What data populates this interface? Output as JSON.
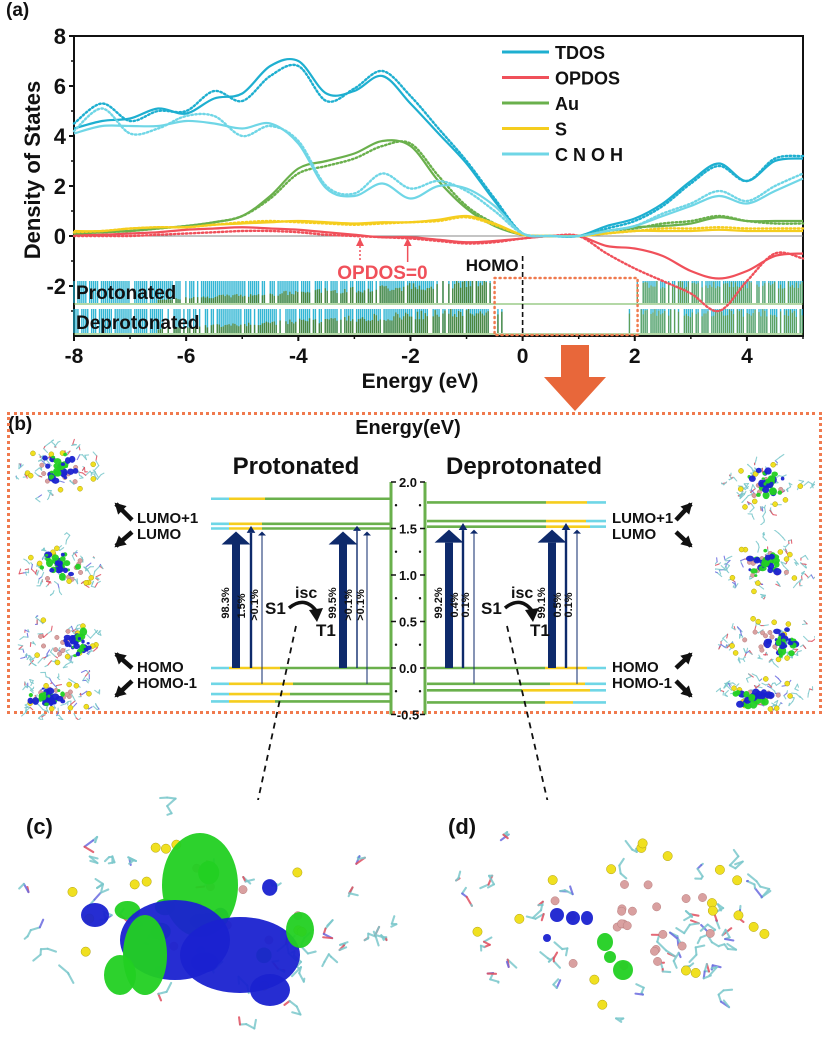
{
  "panel_labels": {
    "a": "(a)",
    "b": "(b)",
    "c": "(c)",
    "d": "(d)"
  },
  "colors": {
    "tdos": "#1eafd0",
    "opdos": "#f0505a",
    "au": "#6ab04c",
    "s": "#f5cd1e",
    "cnoh": "#6fd6e6",
    "arrow_orange": "#e8673a",
    "box_dotted": "#f07a4e",
    "transition_navy": "#0e2a6b",
    "opdos_label": "#f0505a"
  },
  "chart_data": [
    {
      "type": "line",
      "title": "",
      "xlabel": "Energy (eV)",
      "ylabel": "Density of States",
      "xlim": [
        -8,
        5
      ],
      "ylim": [
        -4,
        8
      ],
      "xticks": [
        "-8",
        "-6",
        "-4",
        "-2",
        "0",
        "2",
        "4"
      ],
      "yticks": [
        "-2",
        "0",
        "2",
        "4",
        "6",
        "8"
      ],
      "grid": false,
      "legend": {
        "placement": "top-right",
        "entries": [
          "TDOS",
          "OPDOS",
          "Au",
          "S",
          "C N O H"
        ]
      },
      "line_styles": {
        "solid": "Protonated",
        "dotted": "Deprotonated"
      },
      "x": [
        -8,
        -7.5,
        -7,
        -6.5,
        -6,
        -5.5,
        -5,
        -4.5,
        -4,
        -3.5,
        -3,
        -2.5,
        -2,
        -1.5,
        -1,
        -0.5,
        0,
        0.5,
        1,
        1.5,
        2,
        2.5,
        3,
        3.5,
        4,
        4.5,
        5
      ],
      "series": [
        {
          "name": "TDOS",
          "style": "solid",
          "values": [
            4.3,
            4.6,
            4.7,
            5.1,
            4.9,
            5.5,
            5.7,
            6.8,
            7.0,
            5.7,
            5.8,
            6.4,
            5.3,
            4.1,
            2.9,
            1.4,
            0.1,
            0.0,
            0.0,
            0.4,
            0.7,
            1.3,
            2.2,
            2.9,
            2.2,
            3.0,
            3.1
          ]
        },
        {
          "name": "TDOS",
          "style": "dotted",
          "values": [
            4.5,
            5.3,
            4.6,
            5.0,
            5.0,
            5.8,
            5.4,
            6.4,
            6.8,
            5.4,
            5.9,
            6.6,
            5.6,
            4.3,
            3.0,
            1.5,
            0.1,
            0.0,
            0.0,
            0.3,
            0.6,
            1.2,
            2.1,
            2.8,
            2.2,
            3.1,
            3.2
          ]
        },
        {
          "name": "OPDOS",
          "style": "solid",
          "values": [
            0.05,
            0.05,
            0.1,
            0.15,
            0.25,
            0.3,
            0.35,
            0.3,
            0.25,
            0.15,
            0.05,
            -0.05,
            -0.05,
            -0.15,
            -0.25,
            -0.2,
            -0.1,
            0.0,
            0.0,
            -0.4,
            -0.5,
            -0.8,
            -1.4,
            -1.7,
            -1.4,
            -0.8,
            -0.7
          ]
        },
        {
          "name": "OPDOS",
          "style": "dotted",
          "values": [
            0.0,
            0.0,
            0.0,
            0.05,
            0.1,
            0.15,
            0.2,
            0.2,
            0.15,
            0.05,
            0.0,
            -0.05,
            -0.1,
            -0.2,
            -0.3,
            -0.25,
            -0.1,
            0.0,
            0.0,
            -0.7,
            -1.3,
            -1.8,
            -2.3,
            -3.0,
            -1.8,
            -0.7,
            -0.9
          ]
        },
        {
          "name": "Au",
          "style": "solid",
          "values": [
            0.1,
            0.15,
            0.2,
            0.3,
            0.4,
            0.55,
            0.8,
            1.6,
            2.7,
            3.0,
            3.3,
            3.8,
            3.6,
            2.2,
            1.1,
            0.4,
            0.05,
            0.0,
            0.0,
            0.2,
            0.35,
            0.4,
            0.5,
            0.75,
            0.6,
            0.6,
            0.6
          ]
        },
        {
          "name": "Au",
          "style": "dotted",
          "values": [
            0.1,
            0.15,
            0.2,
            0.3,
            0.4,
            0.55,
            0.8,
            1.5,
            2.5,
            2.8,
            3.1,
            3.6,
            3.7,
            2.4,
            1.2,
            0.5,
            0.05,
            0.0,
            0.0,
            0.2,
            0.3,
            0.5,
            0.6,
            0.8,
            0.6,
            0.5,
            0.5
          ]
        },
        {
          "name": "S",
          "style": "solid",
          "values": [
            0.2,
            0.2,
            0.3,
            0.35,
            0.35,
            0.45,
            0.5,
            0.55,
            0.6,
            0.55,
            0.5,
            0.55,
            0.55,
            0.65,
            0.8,
            0.5,
            0.05,
            0.0,
            0.0,
            0.1,
            0.2,
            0.2,
            0.2,
            0.25,
            0.2,
            0.2,
            0.2
          ]
        },
        {
          "name": "S",
          "style": "dotted",
          "values": [
            0.15,
            0.2,
            0.3,
            0.35,
            0.35,
            0.45,
            0.55,
            0.6,
            0.55,
            0.5,
            0.45,
            0.5,
            0.55,
            0.6,
            0.75,
            0.45,
            0.05,
            0.0,
            0.0,
            0.1,
            0.2,
            0.3,
            0.3,
            0.35,
            0.3,
            0.3,
            0.3
          ]
        },
        {
          "name": "C N O H",
          "style": "solid",
          "values": [
            4.1,
            4.4,
            4.4,
            4.4,
            4.6,
            4.5,
            4.3,
            4.5,
            3.7,
            1.9,
            1.6,
            2.1,
            1.5,
            2.0,
            1.9,
            1.2,
            0.1,
            0.0,
            0.0,
            0.2,
            0.4,
            0.8,
            1.2,
            1.6,
            1.3,
            1.8,
            2.3
          ]
        },
        {
          "name": "C N O H",
          "style": "dotted",
          "values": [
            4.2,
            5.1,
            4.1,
            4.3,
            4.8,
            4.8,
            4.0,
            4.4,
            3.8,
            2.0,
            1.7,
            2.5,
            1.9,
            2.2,
            1.8,
            1.0,
            0.1,
            0.0,
            0.0,
            0.2,
            0.4,
            0.9,
            1.3,
            1.8,
            1.4,
            2.0,
            2.5
          ]
        }
      ],
      "annotations": [
        {
          "text": "OPDOS=0",
          "arrows_at_x": [
            -2.9,
            -2.05
          ],
          "color": "opdos"
        },
        {
          "text": "HOMO",
          "x": 0,
          "style": "dashed vertical line"
        }
      ],
      "level_strips": [
        {
          "label": "Protonated"
        },
        {
          "label": "Deprotonated"
        }
      ],
      "highlight_box": {
        "x_range": [
          -0.5,
          2.05
        ]
      }
    },
    {
      "type": "energy-level-diagram",
      "title": "Energy(eV)",
      "axis_ticks": [
        "2.0",
        "1.5",
        "1.0",
        "0.5",
        "0.0",
        "-0.5"
      ],
      "ylim": [
        -0.5,
        2.0
      ],
      "groups": [
        {
          "name": "Protonated",
          "levels": [
            {
              "energy": 1.82,
              "label": ""
            },
            {
              "energy": 1.55,
              "label": "LUMO+1"
            },
            {
              "energy": 1.5,
              "label": "LUMO"
            },
            {
              "energy": 0.0,
              "label": "HOMO"
            },
            {
              "energy": -0.17,
              "label": "HOMO-1"
            },
            {
              "energy": -0.28,
              "label": ""
            },
            {
              "energy": -0.36,
              "label": ""
            }
          ],
          "transitions_S1": [
            "98.3%",
            "1.5%",
            ">0.1%"
          ],
          "transitions_T1": [
            "99.5%",
            ">0.1%",
            ">0.1%"
          ],
          "isc": {
            "label": "isc",
            "from": "S1",
            "to": "T1"
          }
        },
        {
          "name": "Deprotonated",
          "levels": [
            {
              "energy": 1.78,
              "label": ""
            },
            {
              "energy": 1.58,
              "label": "LUMO+1"
            },
            {
              "energy": 1.52,
              "label": "LUMO"
            },
            {
              "energy": 0.0,
              "label": "HOMO"
            },
            {
              "energy": -0.17,
              "label": "HOMO-1"
            },
            {
              "energy": -0.24,
              "label": ""
            },
            {
              "energy": -0.37,
              "label": ""
            }
          ],
          "transitions_S1": [
            "99.2%",
            "0.4%",
            "0.1%"
          ],
          "transitions_T1": [
            "99.1%",
            "0.5%",
            "0.1%"
          ],
          "isc": {
            "label": "isc",
            "from": "S1",
            "to": "T1"
          }
        }
      ]
    }
  ],
  "panel_b": {
    "title": "Energy(eV)",
    "left_title": "Protonated",
    "right_title": "Deprotonated",
    "orbital_labels_left": [
      "LUMO+1",
      "LUMO",
      "HOMO",
      "HOMO-1"
    ],
    "orbital_labels_right": [
      "LUMO+1",
      "LUMO",
      "HOMO",
      "HOMO-1"
    ],
    "s1_label": "S1",
    "t1_label": "T1",
    "isc_label": "isc"
  },
  "panel_c": {
    "description": "Protonated cluster orbital isosurface (large green/blue lobes)"
  },
  "panel_d": {
    "description": "Deprotonated cluster orbital isosurface (small localized lobes)"
  }
}
